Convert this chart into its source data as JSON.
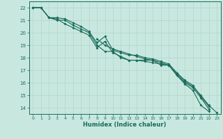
{
  "xlabel": "Humidex (Indice chaleur)",
  "bg_color": "#c8e8df",
  "line_color": "#1a6b5a",
  "grid_color": "#b0d4cc",
  "xlim": [
    -0.5,
    23.5
  ],
  "ylim": [
    13.5,
    22.5
  ],
  "xticks": [
    0,
    1,
    2,
    3,
    4,
    5,
    6,
    7,
    8,
    9,
    10,
    11,
    12,
    13,
    14,
    15,
    16,
    17,
    18,
    19,
    20,
    21,
    22,
    23
  ],
  "yticks": [
    14,
    15,
    16,
    17,
    18,
    19,
    20,
    21,
    22
  ],
  "series": [
    [
      22.0,
      22.0,
      21.2,
      21.1,
      20.7,
      20.4,
      20.1,
      19.8,
      18.8,
      19.3,
      18.4,
      18.1,
      17.8,
      17.8,
      17.8,
      17.8,
      17.4,
      17.4,
      16.6,
      15.9,
      15.4,
      14.2,
      13.7,
      null
    ],
    [
      22.0,
      22.0,
      21.2,
      21.2,
      21.1,
      20.8,
      20.5,
      20.1,
      19.2,
      19.7,
      18.6,
      18.4,
      18.2,
      18.2,
      18.0,
      17.9,
      17.7,
      17.5,
      16.8,
      16.2,
      15.8,
      14.9,
      14.1,
      null
    ],
    [
      22.0,
      22.0,
      21.2,
      21.0,
      21.0,
      20.6,
      20.3,
      20.0,
      19.0,
      18.5,
      18.5,
      18.0,
      17.8,
      17.8,
      17.7,
      17.6,
      17.5,
      17.4,
      16.6,
      16.0,
      15.6,
      14.8,
      13.9,
      null
    ],
    [
      null,
      null,
      null,
      null,
      null,
      null,
      null,
      null,
      19.5,
      19.0,
      18.7,
      18.5,
      18.3,
      18.1,
      17.9,
      17.8,
      17.6,
      17.4,
      16.7,
      16.1,
      15.7,
      15.0,
      14.2,
      13.6
    ]
  ]
}
